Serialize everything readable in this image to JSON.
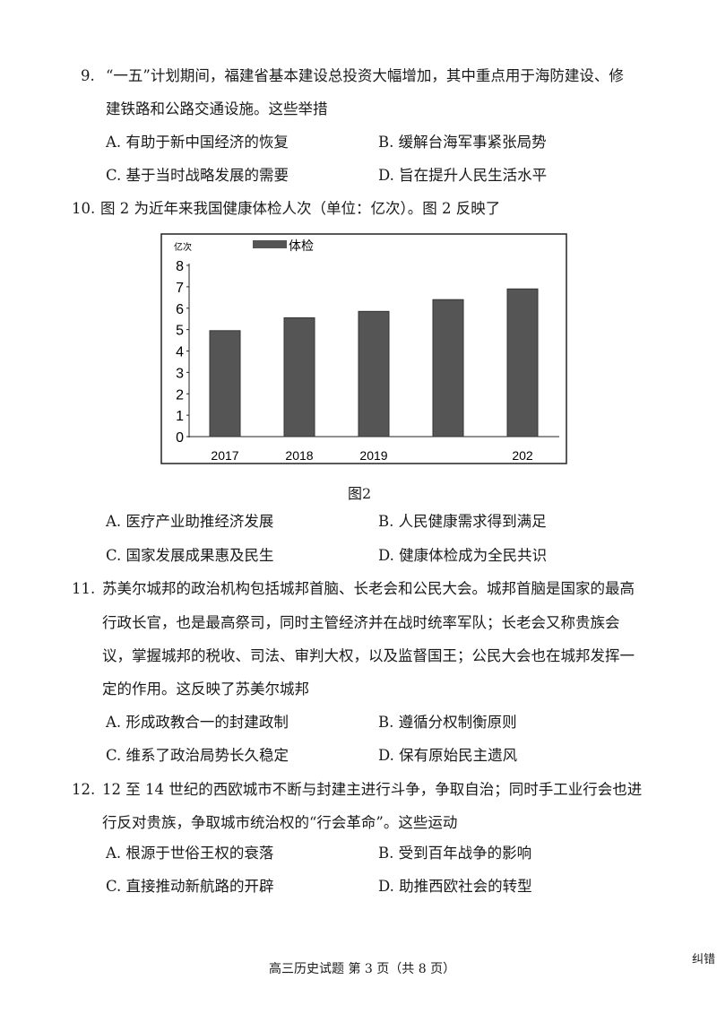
{
  "questions": [
    {
      "number": "9.",
      "lines": [
        "“一五”计划期间，福建省基本建设总投资大幅增加，其中重点用于海防建设、修",
        "建铁路和公路交通设施。这些举措"
      ],
      "options": [
        "A. 有助于新中国经济的恢复",
        "B. 缓解台海军事紧张局势",
        "C. 基于当时战略发展的需要",
        "D. 旨在提升人民生活水平"
      ]
    },
    {
      "number": "10.",
      "lines": [
        "图 2 为近年来我国健康体检人次（单位：亿次）。图 2 反映了"
      ],
      "options": [
        "A. 医疗产业助推经济发展",
        "B. 人民健康需求得到满足",
        "C. 国家发展成果惠及民生",
        "D. 健康体检成为全民共识"
      ]
    },
    {
      "number": "11.",
      "lines": [
        "苏美尔城邦的政治机构包括城邦首脑、长老会和公民大会。城邦首脑是国家的最高",
        "行政长官，也是最高祭司，同时主管经济并在战时统率军队；长老会又称贵族会",
        "议，掌握城邦的税收、司法、审判大权，以及监督国王；公民大会也在城邦发挥一",
        "定的作用。这反映了苏美尔城邦"
      ],
      "options": [
        "A. 形成政教合一的封建政制",
        "B. 遵循分权制衡原则",
        "C. 维系了政治局势长久稳定",
        "D. 保有原始民主遗风"
      ]
    },
    {
      "number": "12.",
      "lines": [
        "12 至 14 世纪的西欧城市不断与封建主进行斗争，争取自治；同时手工业行会也进",
        "行反对贵族，争取城市统治权的“行会革命”。这些运动"
      ],
      "options": [
        "A. 根源于世俗王权的衰落",
        "B. 受到百年战争的影响",
        "C. 直接推动新航路的开辟",
        "D. 助推西欧社会的转型"
      ]
    }
  ],
  "figure_caption": "图2",
  "chart_data": {
    "type": "bar",
    "unit_label": "亿次",
    "legend": "体检",
    "categories": [
      "2017",
      "2018",
      "2019",
      "",
      "202"
    ],
    "values": [
      4.95,
      5.55,
      5.85,
      6.4,
      6.9
    ],
    "yticks": [
      "0",
      "1",
      "2",
      "3",
      "4",
      "5",
      "6",
      "7",
      "8"
    ],
    "ylim": [
      0,
      8
    ],
    "bar_color": "#555555",
    "grid": false
  },
  "footer": "高三历史试题 第 3 页（共 8 页）",
  "corner_mark": "纠错"
}
